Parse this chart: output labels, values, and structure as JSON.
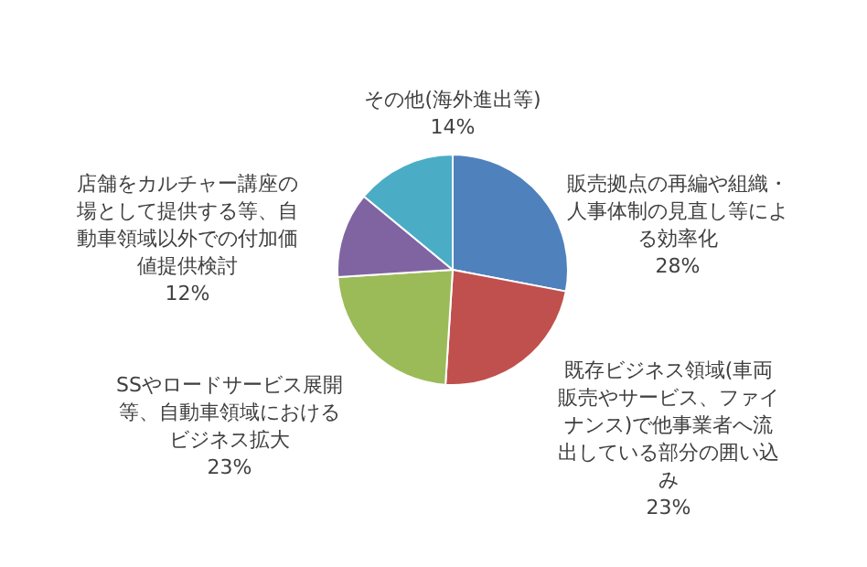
{
  "chart_data": {
    "type": "pie",
    "categories": [
      "販売拠点の再編や組織・人事体制の見直し等による効率化",
      "既存ビジネス領域(車両販売やサービス、ファイナンス)で他事業者へ流出している部分の囲い込み",
      "SSやロードサービス展開等、自動車領域におけるビジネス拡大",
      "店舗をカルチャー講座の場として提供する等、自動車領域以外での付加価値提供検討",
      "その他(海外進出等)"
    ],
    "values": [
      28,
      23,
      23,
      12,
      14
    ],
    "value_labels": [
      "28%",
      "23%",
      "23%",
      "12%",
      "14%"
    ],
    "colors": [
      "#4f81bd",
      "#c0504d",
      "#9bbb59",
      "#8064a2",
      "#4bacc6"
    ]
  }
}
